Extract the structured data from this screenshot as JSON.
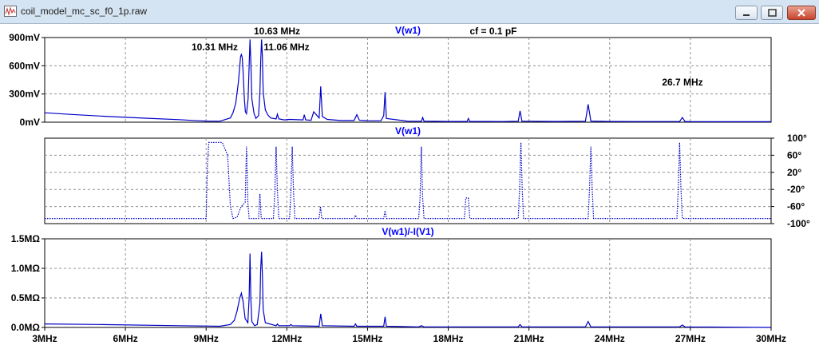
{
  "window": {
    "title": "coil_model_mc_sc_f0_1p.raw"
  },
  "colors": {
    "trace": "#0000c8",
    "grid": "#909090",
    "axis": "#000000",
    "title": "#0000ff"
  },
  "chart_data": [
    {
      "type": "line",
      "title": "V(w1)",
      "annotations": [
        "10.63 MHz",
        "10.31 MHz",
        "11.06 MHz",
        "26.7 MHz",
        "cf = 0.1 pF"
      ],
      "ylabel_left_ticks": [
        "900mV",
        "600mV",
        "300mV",
        "0mV"
      ],
      "ylim": [
        0,
        900
      ],
      "yunit": "mV",
      "xlim": [
        3,
        30
      ],
      "xunit": "MHz",
      "grid": true,
      "series": [
        {
          "x": [
            3.0,
            4.0,
            5.0,
            6.0,
            7.0,
            8.0,
            8.5,
            9.0,
            9.5,
            9.9,
            10.0,
            10.1,
            10.2,
            10.25,
            10.28,
            10.31,
            10.34,
            10.37,
            10.42,
            10.46,
            10.5,
            10.56,
            10.6,
            10.63,
            10.66,
            10.7,
            10.78,
            10.85,
            10.95,
            11.0,
            11.03,
            11.06,
            11.09,
            11.12,
            11.2,
            11.3,
            11.4,
            11.6,
            11.65,
            11.7,
            11.9,
            12.1,
            12.6,
            12.65,
            12.7,
            12.9,
            13.0,
            13.2,
            13.26,
            13.32,
            13.5,
            14.0,
            14.5,
            14.6,
            14.7,
            15.0,
            15.5,
            15.6,
            15.65,
            15.7,
            16.5,
            17.0,
            17.05,
            17.1,
            17.5,
            18.0,
            18.7,
            18.75,
            18.8,
            19.5,
            20.0,
            20.6,
            20.67,
            20.74,
            21.0,
            22.0,
            23.1,
            23.2,
            23.3,
            24.0,
            25.0,
            26.0,
            26.6,
            26.7,
            26.8,
            27.0,
            28.0,
            29.0,
            30.0
          ],
          "y": [
            100,
            82,
            66,
            52,
            39,
            27,
            19,
            12,
            10,
            45,
            100,
            200,
            430,
            600,
            700,
            720,
            690,
            560,
            250,
            110,
            90,
            250,
            600,
            880,
            650,
            250,
            95,
            40,
            70,
            320,
            650,
            880,
            700,
            320,
            130,
            75,
            45,
            35,
            85,
            35,
            25,
            30,
            25,
            80,
            25,
            20,
            110,
            45,
            380,
            60,
            30,
            18,
            18,
            80,
            20,
            16,
            15,
            70,
            320,
            40,
            10,
            10,
            50,
            10,
            9,
            8,
            8,
            40,
            8,
            8,
            7,
            10,
            120,
            10,
            10,
            8,
            10,
            190,
            12,
            8,
            7,
            7,
            7,
            50,
            8,
            6,
            5,
            5,
            5
          ]
        }
      ]
    },
    {
      "type": "line",
      "title": "V(w1)",
      "yright_ticks": [
        "100°",
        "60°",
        "20°",
        "-20°",
        "-60°",
        "-100°"
      ],
      "ylim": [
        -100,
        100
      ],
      "yunit": "°",
      "xlim": [
        3,
        30
      ],
      "line_style": "dotted",
      "grid": true,
      "series": [
        {
          "x": [
            3.0,
            9.0,
            9.05,
            9.1,
            9.6,
            9.8,
            9.85,
            9.9,
            10.0,
            10.15,
            10.3,
            10.45,
            10.5,
            10.55,
            10.6,
            10.65,
            10.7,
            10.95,
            11.0,
            11.05,
            11.1,
            11.15,
            11.5,
            11.55,
            11.6,
            11.65,
            11.7,
            12.1,
            12.15,
            12.2,
            12.25,
            12.3,
            13.2,
            13.25,
            13.3,
            14.5,
            14.55,
            14.6,
            15.6,
            15.65,
            15.7,
            16.9,
            16.95,
            17.0,
            17.05,
            17.1,
            18.6,
            18.65,
            18.7,
            18.75,
            18.8,
            20.6,
            20.65,
            20.7,
            20.75,
            20.8,
            23.2,
            23.25,
            23.3,
            23.35,
            23.4,
            26.5,
            26.55,
            26.6,
            26.65,
            26.7,
            30.0
          ],
          "y": [
            -88,
            -88,
            40,
            90,
            90,
            60,
            0,
            -60,
            -88,
            -85,
            -60,
            -50,
            80,
            -50,
            -88,
            -88,
            -88,
            -88,
            -30,
            -88,
            -88,
            -88,
            -88,
            -30,
            80,
            -20,
            -88,
            -88,
            -30,
            80,
            -30,
            -88,
            -88,
            -60,
            -88,
            -88,
            -80,
            -88,
            -88,
            -70,
            -88,
            -88,
            -40,
            80,
            -40,
            -88,
            -88,
            -40,
            -40,
            -40,
            -88,
            -88,
            -20,
            90,
            -20,
            -88,
            -88,
            -20,
            80,
            -20,
            -88,
            -88,
            -20,
            90,
            -20,
            -88,
            -88
          ]
        }
      ]
    },
    {
      "type": "line",
      "title": "V(w1)/-I(V1)",
      "ylabel_left_ticks": [
        "1.5MΩ",
        "1.0MΩ",
        "0.5MΩ",
        "0.0MΩ"
      ],
      "ylim": [
        0,
        1.5
      ],
      "yunit": "MΩ",
      "xlim": [
        3,
        30
      ],
      "xticks": [
        "3MHz",
        "6MHz",
        "9MHz",
        "12MHz",
        "15MHz",
        "18MHz",
        "21MHz",
        "24MHz",
        "27MHz",
        "30MHz"
      ],
      "grid": true,
      "series": [
        {
          "x": [
            3.0,
            5.0,
            8.0,
            9.5,
            9.9,
            10.05,
            10.15,
            10.25,
            10.31,
            10.37,
            10.45,
            10.55,
            10.6,
            10.63,
            10.66,
            10.7,
            10.8,
            10.9,
            11.0,
            11.03,
            11.06,
            11.09,
            11.12,
            11.2,
            11.6,
            11.65,
            11.7,
            12.1,
            12.15,
            12.2,
            13.2,
            13.26,
            13.32,
            14.5,
            14.55,
            14.6,
            15.6,
            15.65,
            15.7,
            16.9,
            17.0,
            17.1,
            20.6,
            20.67,
            20.74,
            23.1,
            23.2,
            23.3,
            26.6,
            26.7,
            26.8,
            30.0
          ],
          "y": [
            0.06,
            0.05,
            0.03,
            0.02,
            0.05,
            0.12,
            0.28,
            0.5,
            0.58,
            0.45,
            0.15,
            0.08,
            0.5,
            1.25,
            0.5,
            0.1,
            0.03,
            0.05,
            0.4,
            1.0,
            1.28,
            0.9,
            0.3,
            0.08,
            0.03,
            0.06,
            0.03,
            0.03,
            0.05,
            0.03,
            0.02,
            0.23,
            0.03,
            0.02,
            0.06,
            0.02,
            0.02,
            0.18,
            0.02,
            0.01,
            0.03,
            0.01,
            0.01,
            0.05,
            0.01,
            0.01,
            0.1,
            0.01,
            0.01,
            0.04,
            0.01,
            0.0
          ]
        }
      ]
    }
  ]
}
